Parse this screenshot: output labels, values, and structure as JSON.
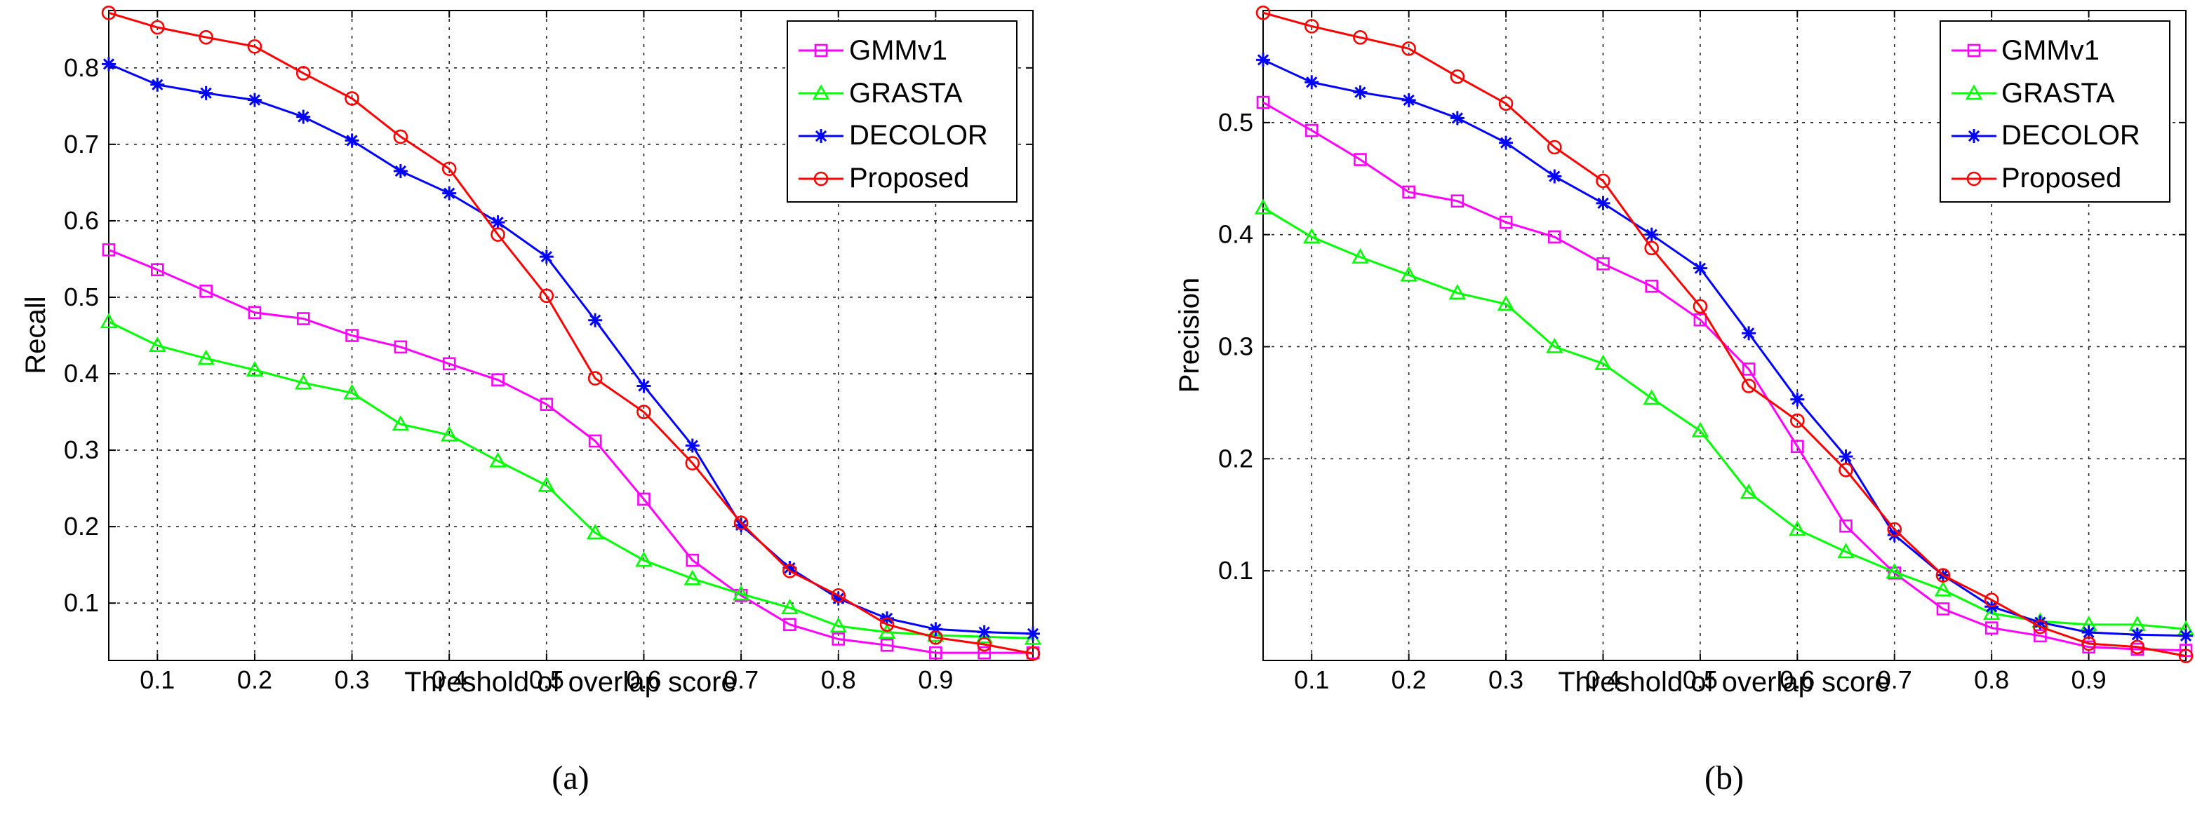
{
  "colors": {
    "GMMv1": "#ff00ff",
    "GRASTA": "#00ff00",
    "DECOLOR": "#0000ff",
    "Proposed": "#ff0000"
  },
  "chart_data": [
    {
      "type": "line",
      "caption": "(a)",
      "xlabel": "Threshold of overlap score",
      "ylabel": "Recall",
      "xlim": [
        0.05,
        1.0
      ],
      "ylim": [
        0.025,
        0.875
      ],
      "xticks": [
        0.1,
        0.2,
        0.3,
        0.4,
        0.5,
        0.6,
        0.7,
        0.8,
        0.9
      ],
      "xtick_labels": [
        "0.1",
        "0.2",
        "0.3",
        "0.4",
        "0.5",
        "0.6",
        "0.7",
        "0.8",
        "0.9"
      ],
      "yticks": [
        0.1,
        0.2,
        0.3,
        0.4,
        0.5,
        0.6,
        0.7,
        0.8
      ],
      "ytick_labels": [
        "0.1",
        "0.2",
        "0.3",
        "0.4",
        "0.5",
        "0.6",
        "0.7",
        "0.8"
      ],
      "grid": true,
      "legend": "top-right",
      "x": [
        0.05,
        0.1,
        0.15,
        0.2,
        0.25,
        0.3,
        0.35,
        0.4,
        0.45,
        0.5,
        0.55,
        0.6,
        0.65,
        0.7,
        0.75,
        0.8,
        0.85,
        0.9,
        0.95,
        1.0
      ],
      "series": [
        {
          "name": "GMMv1",
          "marker": "square",
          "values": [
            0.562,
            0.536,
            0.508,
            0.48,
            0.472,
            0.45,
            0.435,
            0.413,
            0.392,
            0.36,
            0.312,
            0.236,
            0.156,
            0.11,
            0.072,
            0.053,
            0.045,
            0.035,
            0.035,
            0.035
          ]
        },
        {
          "name": "GRASTA",
          "marker": "triangle",
          "values": [
            0.468,
            0.437,
            0.42,
            0.405,
            0.388,
            0.375,
            0.334,
            0.32,
            0.286,
            0.254,
            0.192,
            0.156,
            0.132,
            0.112,
            0.094,
            0.07,
            0.062,
            0.058,
            0.056,
            0.054
          ]
        },
        {
          "name": "DECOLOR",
          "marker": "star",
          "values": [
            0.805,
            0.778,
            0.767,
            0.758,
            0.736,
            0.705,
            0.665,
            0.636,
            0.598,
            0.553,
            0.47,
            0.384,
            0.306,
            0.202,
            0.146,
            0.106,
            0.08,
            0.066,
            0.062,
            0.06
          ]
        },
        {
          "name": "Proposed",
          "marker": "circle",
          "values": [
            0.872,
            0.853,
            0.84,
            0.828,
            0.793,
            0.76,
            0.71,
            0.668,
            0.582,
            0.502,
            0.394,
            0.35,
            0.283,
            0.205,
            0.142,
            0.11,
            0.072,
            0.055,
            0.046,
            0.034
          ]
        }
      ]
    },
    {
      "type": "line",
      "caption": "(b)",
      "xlabel": "Threshold of overlap score",
      "ylabel": "Precision",
      "xlim": [
        0.05,
        1.0
      ],
      "ylim": [
        0.02,
        0.6
      ],
      "xticks": [
        0.1,
        0.2,
        0.3,
        0.4,
        0.5,
        0.6,
        0.7,
        0.8,
        0.9
      ],
      "xtick_labels": [
        "0.1",
        "0.2",
        "0.3",
        "0.4",
        "0.5",
        "0.6",
        "0.7",
        "0.8",
        "0.9"
      ],
      "yticks": [
        0.1,
        0.2,
        0.3,
        0.4,
        0.5
      ],
      "ytick_labels": [
        "0.1",
        "0.2",
        "0.3",
        "0.4",
        "0.5"
      ],
      "grid": true,
      "legend": "top-right",
      "x": [
        0.05,
        0.1,
        0.15,
        0.2,
        0.25,
        0.3,
        0.35,
        0.4,
        0.45,
        0.5,
        0.55,
        0.6,
        0.65,
        0.7,
        0.75,
        0.8,
        0.85,
        0.9,
        0.95,
        1.0
      ],
      "series": [
        {
          "name": "GMMv1",
          "marker": "square",
          "values": [
            0.518,
            0.493,
            0.467,
            0.438,
            0.43,
            0.411,
            0.398,
            0.374,
            0.354,
            0.324,
            0.28,
            0.211,
            0.14,
            0.098,
            0.066,
            0.049,
            0.042,
            0.032,
            0.03,
            0.029
          ]
        },
        {
          "name": "GRASTA",
          "marker": "triangle",
          "values": [
            0.424,
            0.398,
            0.38,
            0.364,
            0.348,
            0.338,
            0.3,
            0.285,
            0.254,
            0.225,
            0.17,
            0.137,
            0.117,
            0.099,
            0.083,
            0.062,
            0.055,
            0.052,
            0.052,
            0.048
          ]
        },
        {
          "name": "DECOLOR",
          "marker": "star",
          "values": [
            0.556,
            0.536,
            0.527,
            0.52,
            0.504,
            0.482,
            0.452,
            0.428,
            0.4,
            0.37,
            0.312,
            0.253,
            0.202,
            0.132,
            0.096,
            0.068,
            0.054,
            0.045,
            0.043,
            0.042
          ]
        },
        {
          "name": "Proposed",
          "marker": "circle",
          "values": [
            0.598,
            0.586,
            0.576,
            0.566,
            0.541,
            0.517,
            0.478,
            0.448,
            0.388,
            0.336,
            0.265,
            0.234,
            0.19,
            0.137,
            0.096,
            0.074,
            0.05,
            0.035,
            0.032,
            0.024
          ]
        }
      ]
    }
  ]
}
